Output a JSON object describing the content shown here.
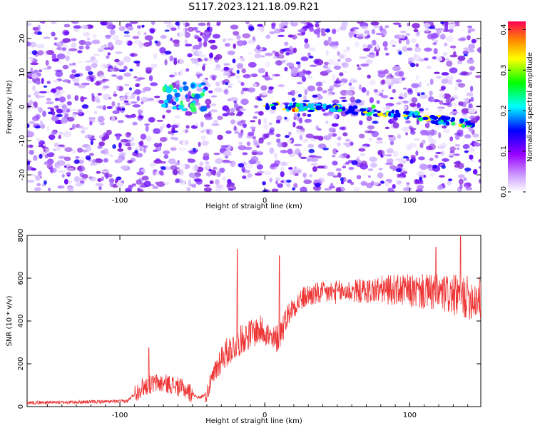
{
  "title": "S117.2023.121.18.09.R21",
  "chart_data": [
    {
      "type": "heatmap",
      "xlabel": "Height of straight line (km)",
      "ylabel": "Frequency (Hz)",
      "xlim": [
        -164,
        149
      ],
      "ylim": [
        -25,
        25
      ],
      "x_ticks": [
        -100,
        0,
        100
      ],
      "y_ticks": [
        -20,
        -10,
        0,
        10,
        20
      ],
      "colorbar": {
        "label": "Normalized spectral amplitude",
        "range": [
          0,
          0.42
        ],
        "ticks": [
          0.0,
          0.1,
          0.2,
          0.3,
          0.4
        ],
        "colors": [
          "#ffffff",
          "#9900ff",
          "#0000ff",
          "#00ffff",
          "#00ff00",
          "#ffff00",
          "#ff8800",
          "#ff0000"
        ]
      },
      "features": [
        {
          "label": "",
          "type": "narrowband_line",
          "frequency_hz_start": 0,
          "frequency_hz_end": -5.5,
          "x_from": 0,
          "x_to": 145
        },
        {
          "label": "",
          "type": "bright_cluster",
          "x_center": -55,
          "freq_center": 3
        }
      ]
    },
    {
      "type": "line",
      "xlabel": "Height of straight line (km)",
      "ylabel": "SNR (10 * v/v)",
      "xlim": [
        -164,
        149
      ],
      "ylim": [
        0,
        800
      ],
      "x_ticks": [
        -100,
        0,
        100
      ],
      "y_ticks": [
        0,
        200,
        400,
        600,
        800
      ],
      "series": [
        {
          "color": "#ee3333",
          "x": [
            -164,
            -140,
            -120,
            -95,
            -92,
            -85,
            -75,
            -65,
            -55,
            -45,
            -40,
            -35,
            -30,
            -25,
            -20,
            -15,
            -10,
            -5,
            0,
            5,
            10,
            15,
            20,
            25,
            30,
            40,
            50,
            60,
            70,
            80,
            90,
            100,
            110,
            120,
            130,
            140,
            149
          ],
          "y": [
            18,
            20,
            22,
            25,
            45,
            90,
            110,
            105,
            80,
            40,
            65,
            150,
            230,
            260,
            290,
            320,
            340,
            355,
            360,
            300,
            330,
            420,
            470,
            500,
            520,
            530,
            535,
            540,
            540,
            545,
            545,
            540,
            535,
            530,
            520,
            510,
            505
          ],
          "spikes": [
            {
              "x": -19,
              "y": 735
            },
            {
              "x": 10,
              "y": 705
            },
            {
              "x": -80,
              "y": 275
            },
            {
              "x": 118,
              "y": 745
            },
            {
              "x": 135,
              "y": 800
            }
          ]
        }
      ]
    }
  ]
}
